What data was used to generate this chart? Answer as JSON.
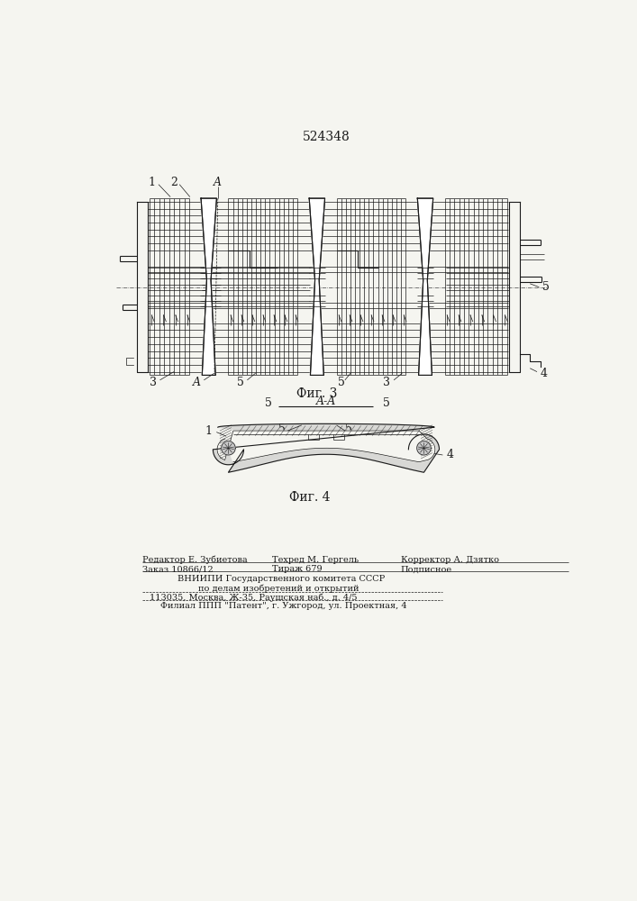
{
  "patent_number": "524348",
  "background_color": "#f5f5f0",
  "line_color": "#1a1a1a",
  "fig3_label": "Фиг. 3",
  "fig4_label": "Фиг. 4",
  "footer_lines": [
    "Редактор Е. Зубиетова",
    "Техред М. Гергель",
    "Корректор А. Дзятко",
    "Заказ 10866/12",
    "Тираж 679",
    "Подписное",
    "ВНИИПИ Государственного комитета СССР",
    "по делам изобретений и открытий",
    "113035, Москва, Ж-35, Раушская наб., д. 4/5",
    "Филиал ППП \"Патент\", г. Ужгород, ул. Проектная, 4"
  ]
}
